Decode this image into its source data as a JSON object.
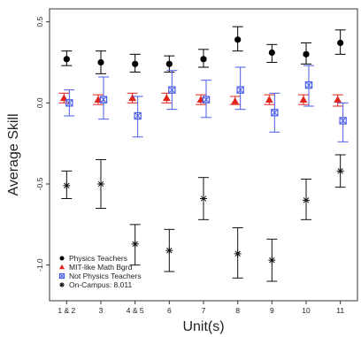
{
  "chart_data": {
    "type": "scatter",
    "title": "",
    "xlabel": "Unit(s)",
    "ylabel": "Average Skill",
    "categories": [
      "1 & 2",
      "3",
      "4 & 5",
      "6",
      "7",
      "8",
      "9",
      "10",
      "11"
    ],
    "ylim": [
      -1.22,
      0.58
    ],
    "yticks": [
      0.5,
      0.0,
      -0.5,
      -1.0
    ],
    "ytick_labels": [
      "0.5",
      "0.0",
      "-0.5",
      "-1.0"
    ],
    "legend_position": "bottom-left",
    "series": [
      {
        "name": "Physics Teachers",
        "color": "#000000",
        "marker": "circle",
        "values": [
          0.27,
          0.25,
          0.24,
          0.24,
          0.27,
          0.39,
          0.31,
          0.3,
          0.37
        ],
        "err_low": [
          0.23,
          0.18,
          0.19,
          0.19,
          0.22,
          0.32,
          0.25,
          0.24,
          0.3
        ],
        "err_high": [
          0.32,
          0.32,
          0.3,
          0.29,
          0.33,
          0.47,
          0.36,
          0.37,
          0.45
        ]
      },
      {
        "name": "MIT-like Math Bgrd",
        "color": "#e0241b",
        "marker": "triangle",
        "values": [
          0.03,
          0.02,
          0.03,
          0.03,
          0.02,
          0.01,
          0.02,
          0.02,
          0.02
        ],
        "err_low": [
          0.0,
          -0.01,
          0.0,
          0.0,
          -0.01,
          -0.01,
          -0.01,
          -0.01,
          -0.02
        ],
        "err_high": [
          0.06,
          0.05,
          0.06,
          0.06,
          0.05,
          0.04,
          0.05,
          0.05,
          0.05
        ]
      },
      {
        "name": "Not Physics Teachers",
        "color": "#4a5ee8",
        "marker": "square-x",
        "values": [
          0.0,
          0.02,
          -0.08,
          0.08,
          0.02,
          0.08,
          -0.06,
          0.11,
          -0.11
        ],
        "err_low": [
          -0.08,
          -0.1,
          -0.21,
          -0.04,
          -0.09,
          -0.04,
          -0.18,
          -0.02,
          -0.24
        ],
        "err_high": [
          0.08,
          0.16,
          0.04,
          0.2,
          0.14,
          0.22,
          0.06,
          0.23,
          0.0
        ]
      },
      {
        "name": "On-Campus: 8.011",
        "color": "#111111",
        "marker": "asterisk",
        "values": [
          -0.51,
          -0.5,
          -0.87,
          -0.91,
          -0.59,
          -0.93,
          -0.97,
          -0.6,
          -0.42
        ],
        "err_low": [
          -0.59,
          -0.65,
          -1.0,
          -1.04,
          -0.72,
          -1.08,
          -1.1,
          -0.72,
          -0.52
        ],
        "err_high": [
          -0.42,
          -0.35,
          -0.75,
          -0.78,
          -0.46,
          -0.77,
          -0.84,
          -0.47,
          -0.32
        ]
      }
    ]
  }
}
